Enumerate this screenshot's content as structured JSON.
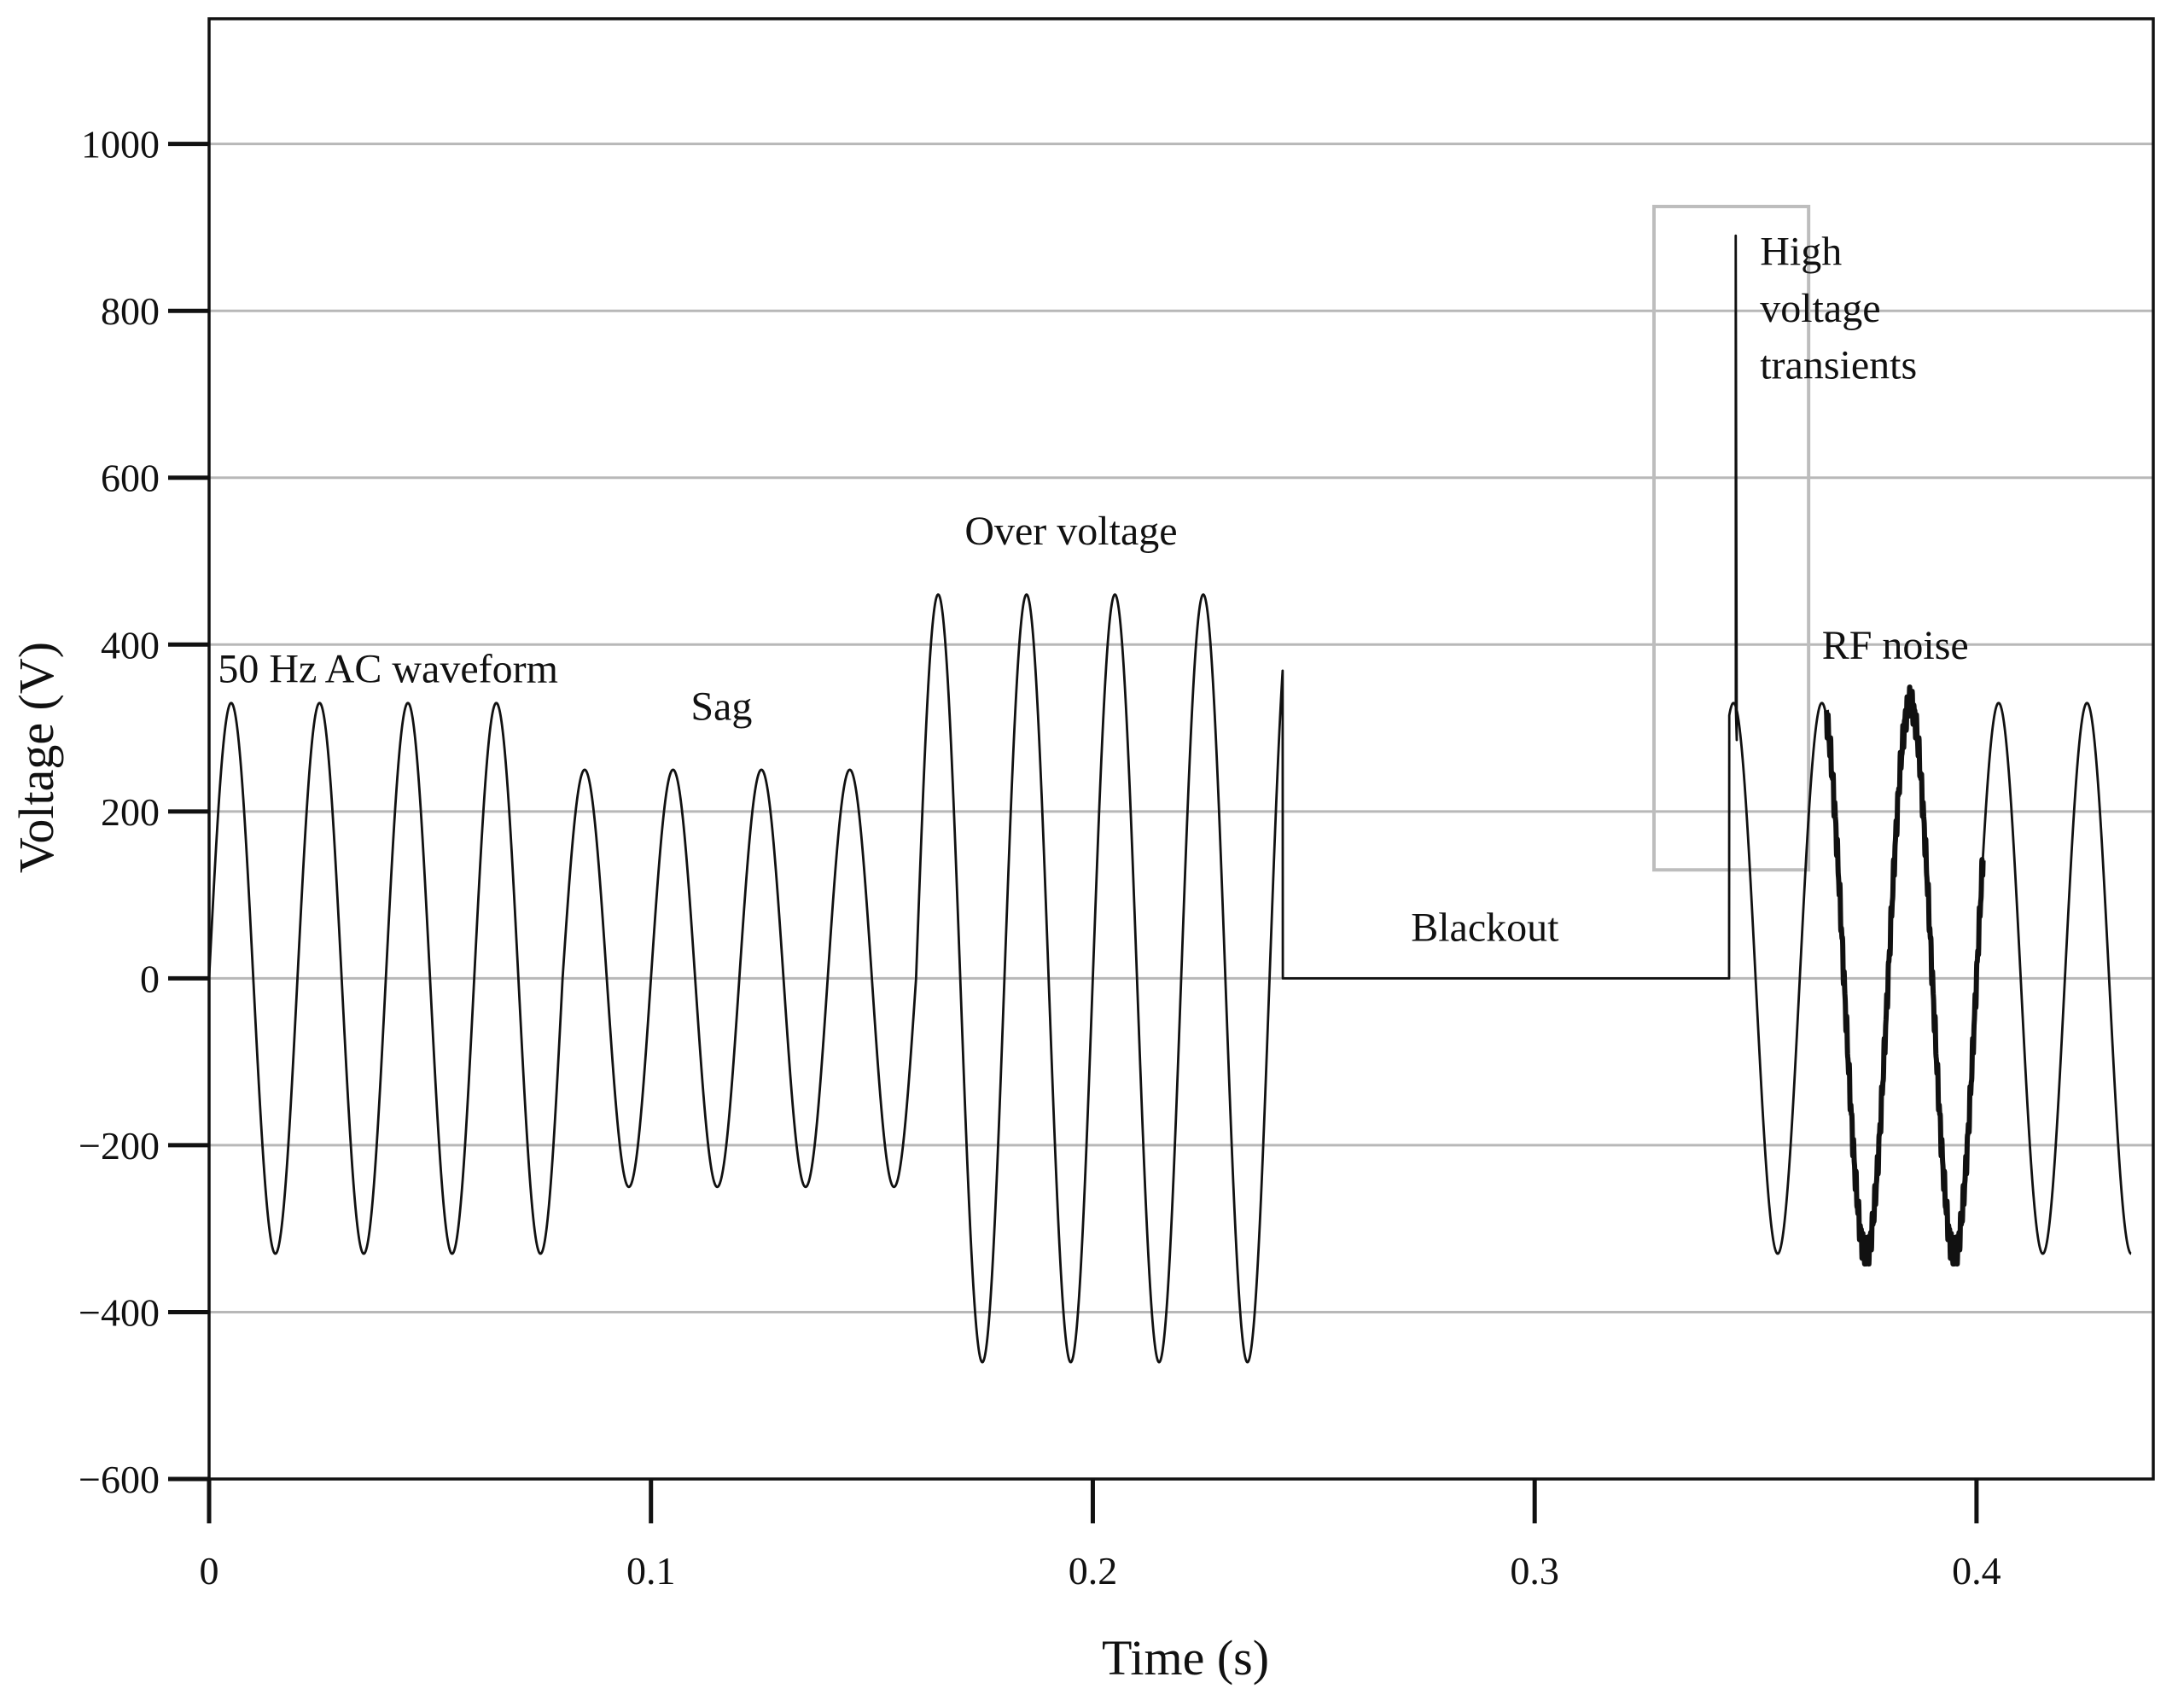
{
  "chart_data": {
    "type": "line",
    "title": "",
    "xlabel": "Time (s)",
    "ylabel": "Voltage (V)",
    "xlim": [
      0,
      0.44
    ],
    "ylim": [
      -600,
      1150
    ],
    "x_ticks": [
      0,
      0.1,
      0.2,
      0.3,
      0.4
    ],
    "x_tick_labels": [
      "0",
      "0.1",
      "0.2",
      "0.3",
      "0.4"
    ],
    "y_ticks": [
      -600,
      -400,
      -200,
      0,
      200,
      400,
      600,
      800,
      1000
    ],
    "y_tick_labels": [
      "−600",
      "−400",
      "−200",
      "0",
      "200",
      "400",
      "600",
      "800",
      "1000"
    ],
    "grid": "horizontal",
    "frequency_hz": 50,
    "segments": [
      {
        "label": "50 Hz AC waveform",
        "t_start": 0.0,
        "t_end": 0.08,
        "amplitude": 330
      },
      {
        "label": "Sag",
        "t_start": 0.08,
        "t_end": 0.16,
        "amplitude": 250
      },
      {
        "label": "Over voltage",
        "t_start": 0.16,
        "t_end": 0.243,
        "amplitude": 460
      },
      {
        "label": "Blackout",
        "t_start": 0.243,
        "t_end": 0.344,
        "amplitude": 0
      },
      {
        "label": "High voltage transients",
        "t_start": 0.344,
        "t_end": 0.36,
        "amplitude": 330,
        "spike": {
          "t": 0.3455,
          "peak": 890
        }
      },
      {
        "label": "RF noise",
        "t_start": 0.36,
        "t_end": 0.435,
        "amplitude": 330,
        "noisy_range": [
          0.366,
          0.4015
        ]
      }
    ],
    "highlight_box": {
      "t_range": [
        0.327,
        0.362
      ],
      "v_range": [
        130,
        925
      ]
    },
    "annotations": [
      {
        "text": "50 Hz AC waveform",
        "t": 0.002,
        "v": 355
      },
      {
        "text": "Sag",
        "t": 0.109,
        "v": 310
      },
      {
        "text": "Over voltage",
        "t": 0.171,
        "v": 520
      },
      {
        "text": "Blackout",
        "t": 0.272,
        "v": 45
      },
      {
        "text": "High",
        "t": 0.351,
        "v": 855
      },
      {
        "text": "voltage",
        "t": 0.351,
        "v": 787
      },
      {
        "text": "transients",
        "t": 0.351,
        "v": 719
      },
      {
        "text": "RF noise",
        "t": 0.365,
        "v": 383
      }
    ]
  }
}
